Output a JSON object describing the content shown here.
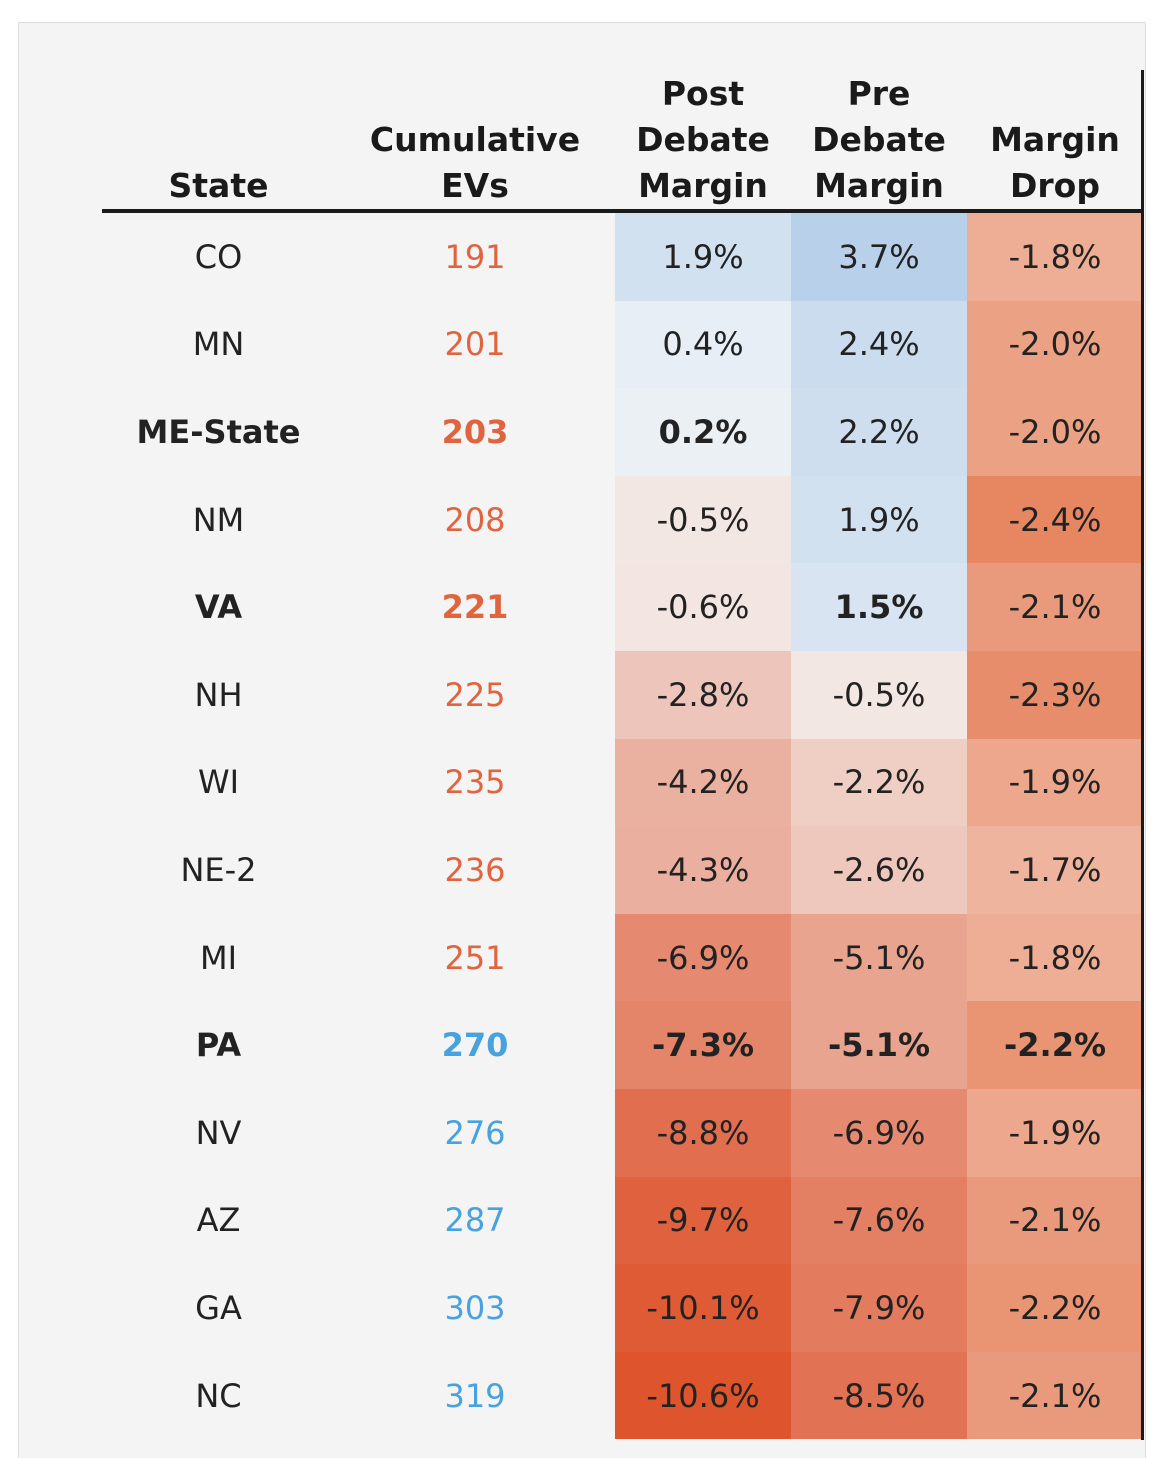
{
  "table": {
    "headers": [
      "State",
      "Cumulative EVs",
      "Post Debate Margin",
      "Pre Debate Margin",
      "Margin Drop"
    ],
    "rows": [
      [
        "CO",
        "191",
        "1.9%",
        "3.7%",
        "-1.8%"
      ],
      [
        "MN",
        "201",
        "0.4%",
        "2.4%",
        "-2.0%"
      ],
      [
        "ME-State",
        "203",
        "0.2%",
        "2.2%",
        "-2.0%"
      ],
      [
        "NM",
        "208",
        "-0.5%",
        "1.9%",
        "-2.4%"
      ],
      [
        "VA",
        "221",
        "-0.6%",
        "1.5%",
        "-2.1%"
      ],
      [
        "NH",
        "225",
        "-2.8%",
        "-0.5%",
        "-2.3%"
      ],
      [
        "WI",
        "235",
        "-4.2%",
        "-2.2%",
        "-1.9%"
      ],
      [
        "NE-2",
        "236",
        "-4.3%",
        "-2.6%",
        "-1.7%"
      ],
      [
        "MI",
        "251",
        "-6.9%",
        "-5.1%",
        "-1.8%"
      ],
      [
        "PA",
        "270",
        "-7.3%",
        "-5.1%",
        "-2.2%"
      ],
      [
        "NV",
        "276",
        "-8.8%",
        "-6.9%",
        "-1.9%"
      ],
      [
        "AZ",
        "287",
        "-9.7%",
        "-7.6%",
        "-2.1%"
      ],
      [
        "GA",
        "303",
        "-10.1%",
        "-7.9%",
        "-2.2%"
      ],
      [
        "NC",
        "319",
        "-10.6%",
        "-8.5%",
        "-2.1%"
      ]
    ]
  }
}
